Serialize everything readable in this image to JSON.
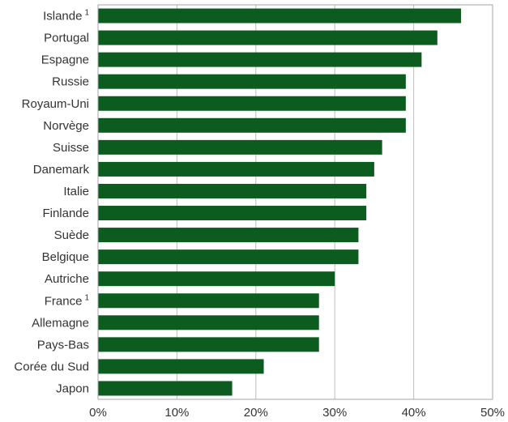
{
  "chart_data": {
    "type": "bar",
    "orientation": "horizontal",
    "categories": [
      "Islande",
      "Portugal",
      "Espagne",
      "Russie",
      "Royaum-Uni",
      "Norvège",
      "Suisse",
      "Danemark",
      "Italie",
      "Finlande",
      "Suède",
      "Belgique",
      "Autriche",
      "France",
      "Allemagne",
      "Pays-Bas",
      "Corée du Sud",
      "Japon"
    ],
    "footnote_markers": [
      "1",
      "",
      "",
      "",
      "",
      "",
      "",
      "",
      "",
      "",
      "",
      "",
      "",
      "1",
      "",
      "",
      "",
      ""
    ],
    "values": [
      46,
      43,
      41,
      39,
      39,
      39,
      36,
      35,
      34,
      34,
      33,
      33,
      30,
      28,
      28,
      28,
      21,
      17
    ],
    "xlim": [
      0,
      50
    ],
    "x_ticks": [
      0,
      10,
      20,
      30,
      40,
      50
    ],
    "x_tick_labels": [
      "0%",
      "10%",
      "20%",
      "30%",
      "40%",
      "50%"
    ],
    "grid": true,
    "bar_color": "#0d5c1f",
    "title": "",
    "xlabel": "",
    "ylabel": ""
  }
}
